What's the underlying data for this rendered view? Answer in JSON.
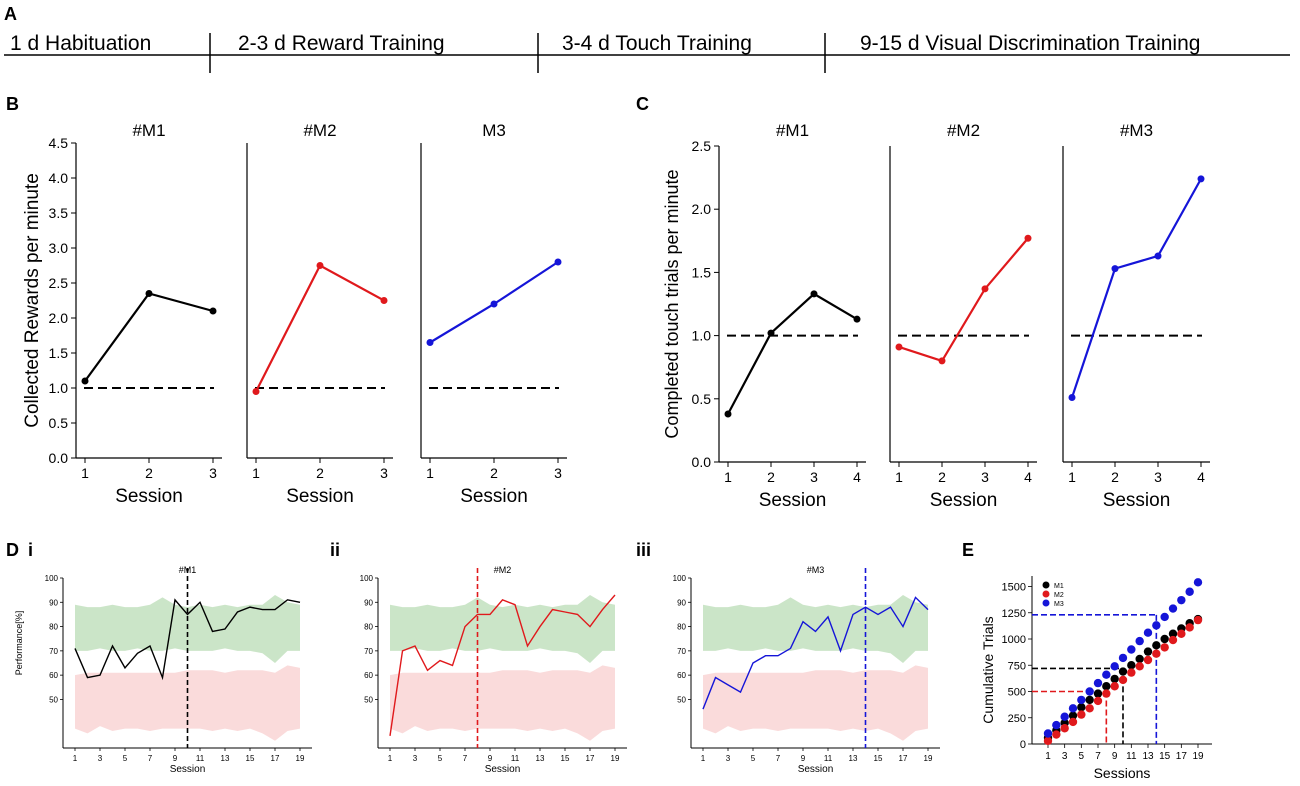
{
  "timeline": {
    "panel_label": "A",
    "stages": [
      "1 d Habituation",
      "2-3 d Reward Training",
      "3-4 d Touch Training",
      "9-15 d Visual Discrimination Training"
    ]
  },
  "colors": {
    "M1": "#000000",
    "M2": "#e0191c",
    "M3": "#1515d8",
    "green_band": "#b9dcb5",
    "red_band": "#f8cfcf"
  },
  "chart_data": [
    {
      "id": "B",
      "type": "line",
      "panel_label": "B",
      "ylabel": "Collected Rewards per minute",
      "xlabel": "Session",
      "ylim": [
        0,
        4.5
      ],
      "yticks": [
        "0.0",
        "0.5",
        "1.0",
        "1.5",
        "2.0",
        "2.5",
        "3.0",
        "3.5",
        "4.0",
        "4.5"
      ],
      "criterion": 1.0,
      "subplots": [
        {
          "title": "#M1",
          "color": "#000000",
          "x": [
            1,
            2,
            3
          ],
          "y": [
            1.1,
            2.35,
            2.1
          ]
        },
        {
          "title": "#M2",
          "color": "#e0191c",
          "x": [
            1,
            2,
            3
          ],
          "y": [
            0.95,
            2.75,
            2.25
          ]
        },
        {
          "title": "M3",
          "color": "#1515d8",
          "x": [
            1,
            2,
            3
          ],
          "y": [
            1.65,
            2.2,
            2.8
          ]
        }
      ]
    },
    {
      "id": "C",
      "type": "line",
      "panel_label": "C",
      "ylabel": "Completed touch trials per minute",
      "xlabel": "Session",
      "ylim": [
        0,
        2.5
      ],
      "yticks": [
        "0.0",
        "0.5",
        "1.0",
        "1.5",
        "2.0",
        "2.5"
      ],
      "criterion": 1.0,
      "subplots": [
        {
          "title": "#M1",
          "color": "#000000",
          "x": [
            1,
            2,
            3,
            4
          ],
          "y": [
            0.38,
            1.02,
            1.33,
            1.13
          ]
        },
        {
          "title": "#M2",
          "color": "#e0191c",
          "x": [
            1,
            2,
            3,
            4
          ],
          "y": [
            0.91,
            0.8,
            1.37,
            1.77
          ]
        },
        {
          "title": "#M3",
          "color": "#1515d8",
          "x": [
            1,
            2,
            3,
            4
          ],
          "y": [
            0.51,
            1.53,
            1.63,
            2.24
          ]
        }
      ]
    },
    {
      "id": "D",
      "type": "line",
      "panel_label": "D",
      "ylabel": "Performance[%]",
      "xlabel": "Session",
      "ylim": [
        30,
        100
      ],
      "yticks": [
        "50",
        "60",
        "70",
        "80",
        "90",
        "100"
      ],
      "xticks": [
        "1",
        "3",
        "5",
        "7",
        "9",
        "11",
        "13",
        "15",
        "17",
        "19"
      ],
      "green_band_upper": [
        89,
        88,
        88,
        89,
        88,
        88,
        89,
        92,
        89,
        88,
        89,
        88,
        89,
        88,
        89,
        89,
        93,
        90,
        89
      ],
      "green_band_lower": [
        70,
        70,
        71,
        70,
        70,
        71,
        70,
        70,
        71,
        70,
        70,
        70,
        71,
        70,
        70,
        69,
        65,
        70,
        70
      ],
      "red_band_upper": [
        60,
        61,
        61,
        61,
        61,
        61,
        61,
        61,
        61,
        62,
        62,
        62,
        61,
        62,
        62,
        62,
        61,
        64,
        63
      ],
      "red_band_lower": [
        38,
        36,
        39,
        37,
        38,
        38,
        37,
        38,
        38,
        38,
        38,
        37,
        38,
        37,
        38,
        36,
        33,
        37,
        38
      ],
      "subplots": [
        {
          "sub_label": "i",
          "title": "#M1",
          "color": "#000000",
          "criterion_session": 10,
          "x": [
            1,
            2,
            3,
            4,
            5,
            6,
            7,
            8,
            9,
            10,
            11,
            12,
            13,
            14,
            15,
            16,
            17,
            18,
            19
          ],
          "y": [
            71,
            59,
            60,
            72,
            63,
            69,
            72,
            59,
            91,
            85,
            90,
            78,
            79,
            86,
            88,
            87,
            87,
            91,
            90
          ]
        },
        {
          "sub_label": "ii",
          "title": "#M2",
          "color": "#e0191c",
          "criterion_session": 8,
          "x": [
            1,
            2,
            3,
            4,
            5,
            6,
            7,
            8,
            9,
            10,
            11,
            12,
            13,
            14,
            15,
            16,
            17,
            18,
            19
          ],
          "y": [
            35,
            70,
            72,
            62,
            66,
            64,
            80,
            85,
            85,
            91,
            89,
            72,
            80,
            87,
            86,
            85,
            80,
            87,
            93
          ]
        },
        {
          "sub_label": "iii",
          "title": "#M3",
          "color": "#1515d8",
          "criterion_session": 14,
          "x": [
            1,
            2,
            3,
            4,
            5,
            6,
            7,
            8,
            9,
            10,
            11,
            12,
            13,
            14,
            15,
            16,
            17,
            18,
            19
          ],
          "y": [
            46,
            59,
            56,
            53,
            65,
            68,
            68,
            71,
            82,
            78,
            84,
            70,
            85,
            88,
            85,
            88,
            80,
            92,
            87
          ]
        }
      ]
    },
    {
      "id": "E",
      "type": "scatter",
      "panel_label": "E",
      "ylabel": "Cumulative Trials",
      "xlabel": "Sessions",
      "ylim": [
        0,
        1600
      ],
      "yticks": [
        "0",
        "250",
        "500",
        "750",
        "1000",
        "1250",
        "1500"
      ],
      "xticks": [
        "1",
        "3",
        "5",
        "7",
        "9",
        "11",
        "13",
        "15",
        "17",
        "19"
      ],
      "legend": [
        "M1",
        "M2",
        "M3"
      ],
      "series": [
        {
          "name": "M1",
          "color": "#000000",
          "x": [
            1,
            2,
            3,
            4,
            5,
            6,
            7,
            8,
            9,
            10,
            11,
            12,
            13,
            14,
            15,
            16,
            17,
            18,
            19
          ],
          "y": [
            60,
            130,
            200,
            270,
            350,
            420,
            480,
            550,
            620,
            690,
            750,
            810,
            880,
            940,
            1000,
            1050,
            1100,
            1150,
            1190
          ],
          "criterion_session": 10,
          "criterion_value": 720
        },
        {
          "name": "M2",
          "color": "#e0191c",
          "x": [
            1,
            2,
            3,
            4,
            5,
            6,
            7,
            8,
            9,
            10,
            11,
            12,
            13,
            14,
            15,
            16,
            17,
            18,
            19
          ],
          "y": [
            30,
            90,
            150,
            210,
            280,
            340,
            410,
            480,
            550,
            610,
            680,
            740,
            800,
            860,
            920,
            990,
            1050,
            1110,
            1180
          ],
          "criterion_session": 8,
          "criterion_value": 500
        },
        {
          "name": "M3",
          "color": "#1515d8",
          "x": [
            1,
            2,
            3,
            4,
            5,
            6,
            7,
            8,
            9,
            10,
            11,
            12,
            13,
            14,
            15,
            16,
            17,
            18,
            19
          ],
          "y": [
            100,
            180,
            260,
            340,
            420,
            500,
            580,
            660,
            740,
            820,
            900,
            980,
            1060,
            1130,
            1210,
            1290,
            1370,
            1450,
            1540
          ],
          "criterion_session": 14,
          "criterion_value": 1230
        }
      ]
    }
  ]
}
